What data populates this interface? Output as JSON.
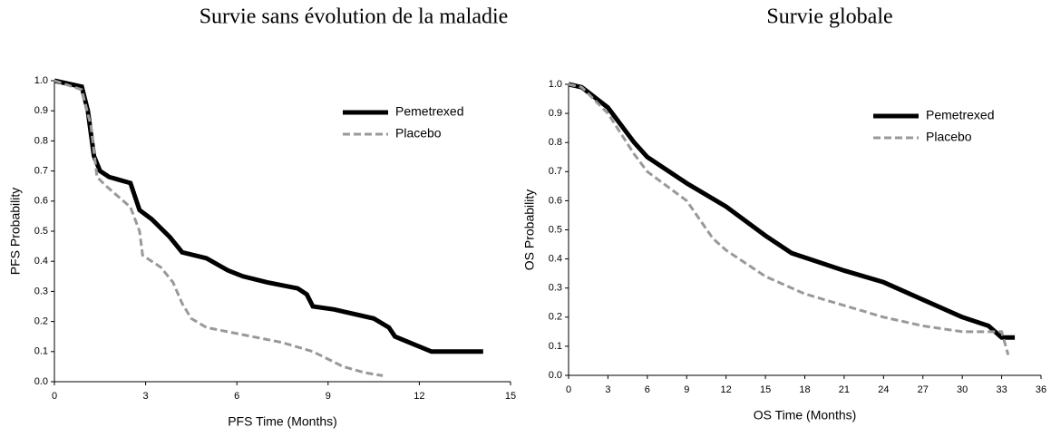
{
  "chart_data": [
    {
      "type": "line",
      "title": "Survie sans évolution de la maladie",
      "x_label": "PFS Time (Months)",
      "y_label": "PFS Probability",
      "xlim": [
        0,
        15
      ],
      "ylim": [
        0,
        1
      ],
      "xticks": [
        0,
        3,
        6,
        9,
        12,
        15
      ],
      "yticks": [
        {
          "value": 0,
          "label": "0.0"
        },
        0.1,
        0.2,
        0.3,
        0.4,
        0.5,
        0.6,
        0.7,
        0.8,
        0.9,
        {
          "value": 1,
          "label": "1.0"
        }
      ],
      "legend": "top-right",
      "series": [
        {
          "name": "Pemetrexed",
          "color": "#000000",
          "style": "solid",
          "x": [
            0,
            0.9,
            1.1,
            1.3,
            1.5,
            1.8,
            2.5,
            2.8,
            3.2,
            3.8,
            4.2,
            5,
            5.7,
            6.2,
            7,
            8,
            8.3,
            8.5,
            9.2,
            10.5,
            11,
            11.2,
            12.4,
            14.1
          ],
          "values": [
            1,
            0.98,
            0.9,
            0.75,
            0.7,
            0.68,
            0.66,
            0.57,
            0.54,
            0.48,
            0.43,
            0.41,
            0.37,
            0.35,
            0.33,
            0.31,
            0.29,
            0.25,
            0.24,
            0.21,
            0.18,
            0.15,
            0.1,
            0.1
          ]
        },
        {
          "name": "Placebo",
          "color": "#999999",
          "style": "dashed",
          "x": [
            0,
            0.9,
            1.2,
            1.4,
            1.7,
            2.5,
            2.8,
            2.9,
            3.5,
            3.9,
            4.2,
            4.5,
            5,
            6,
            7,
            7.5,
            8.5,
            9.5,
            10.2,
            10.8
          ],
          "values": [
            1,
            0.97,
            0.85,
            0.68,
            0.65,
            0.58,
            0.5,
            0.42,
            0.38,
            0.33,
            0.26,
            0.21,
            0.18,
            0.16,
            0.14,
            0.13,
            0.1,
            0.05,
            0.03,
            0.02
          ]
        }
      ]
    },
    {
      "type": "line",
      "title": "Survie globale",
      "x_label": "OS Time (Months)",
      "y_label": "OS Probability",
      "xlim": [
        0,
        36
      ],
      "ylim": [
        0,
        1
      ],
      "xticks": [
        0,
        3,
        6,
        9,
        12,
        15,
        18,
        21,
        24,
        27,
        30,
        33,
        36
      ],
      "yticks": [
        {
          "value": 0,
          "label": "0.0"
        },
        0.1,
        0.2,
        0.3,
        0.4,
        0.5,
        0.6,
        0.7,
        0.8,
        0.9,
        {
          "value": 1,
          "label": "1.0"
        }
      ],
      "legend": "top-right",
      "series": [
        {
          "name": "Pemetrexed",
          "color": "#000000",
          "style": "solid",
          "x": [
            0,
            1,
            3,
            5,
            6,
            9,
            12,
            15,
            17,
            21,
            24,
            27,
            30,
            32,
            33,
            34
          ],
          "values": [
            1,
            0.99,
            0.92,
            0.8,
            0.75,
            0.66,
            0.58,
            0.48,
            0.42,
            0.36,
            0.32,
            0.26,
            0.2,
            0.17,
            0.13,
            0.13
          ]
        },
        {
          "name": "Placebo",
          "color": "#999999",
          "style": "dashed",
          "x": [
            0,
            1,
            3,
            5,
            6,
            9,
            11,
            12,
            15,
            18,
            21,
            24,
            27,
            30,
            33,
            33.5
          ],
          "values": [
            1,
            0.99,
            0.9,
            0.76,
            0.7,
            0.6,
            0.47,
            0.43,
            0.34,
            0.28,
            0.24,
            0.2,
            0.17,
            0.15,
            0.15,
            0.07
          ]
        }
      ]
    }
  ]
}
